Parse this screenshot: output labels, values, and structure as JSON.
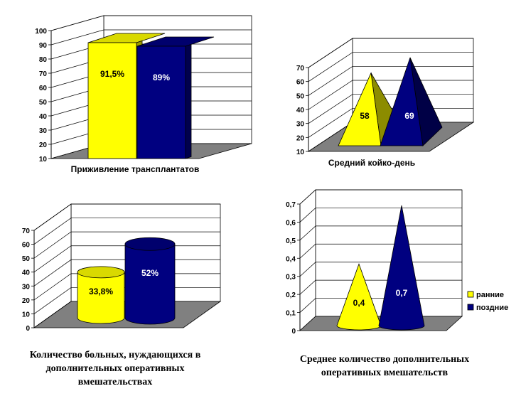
{
  "colors": {
    "yellow": "#ffff00",
    "navy": "#000080",
    "floor": "#808080",
    "wall": "#ffffff"
  },
  "chart_data": [
    {
      "type": "bar",
      "shape": "box",
      "title": "",
      "xlabel": "Приживление трансплантатов",
      "ylim": [
        10,
        100
      ],
      "yticks": [
        "10",
        "20",
        "30",
        "40",
        "50",
        "60",
        "70",
        "80",
        "90",
        "100"
      ],
      "series": [
        {
          "value": 91.5,
          "label": "91,5%",
          "color": "yellow"
        },
        {
          "value": 89,
          "label": "89%",
          "color": "navy"
        }
      ]
    },
    {
      "type": "bar",
      "shape": "pyramid",
      "title": "",
      "xlabel": "Средний койко-день",
      "ylim": [
        10,
        70
      ],
      "yticks": [
        "10",
        "20",
        "30",
        "40",
        "50",
        "60",
        "70"
      ],
      "series": [
        {
          "value": 58,
          "label": "58",
          "color": "yellow"
        },
        {
          "value": 69,
          "label": "69",
          "color": "navy"
        }
      ]
    },
    {
      "type": "bar",
      "shape": "cylinder",
      "title": "Количество больных, нуждающихся в дополнительных оперативных вмешательствах",
      "title_lines": [
        "Количество больных, нуждающихся в",
        "дополнительных оперативных",
        "вмешательствах"
      ],
      "ylim": [
        0,
        70
      ],
      "yticks": [
        "0",
        "10",
        "20",
        "30",
        "40",
        "50",
        "60",
        "70"
      ],
      "series": [
        {
          "value": 33.8,
          "label": "33,8%",
          "color": "yellow"
        },
        {
          "value": 52,
          "label": "52%",
          "color": "navy"
        }
      ]
    },
    {
      "type": "bar",
      "shape": "cone",
      "title": "Среднее количество дополнительных оперативных вмешательств",
      "title_lines": [
        "Среднее количество дополнительных",
        "оперативных вмешательств"
      ],
      "ylim": [
        0,
        0.7
      ],
      "yticks": [
        "0",
        "0,1",
        "0,2",
        "0,3",
        "0,4",
        "0,5",
        "0,6",
        "0,7"
      ],
      "series": [
        {
          "name": "ранние",
          "value": 0.4,
          "label": "0,4",
          "color": "yellow"
        },
        {
          "name": "поздние",
          "value": 0.7,
          "label": "0,7",
          "color": "navy"
        }
      ],
      "legend": {
        "position": "right",
        "items": [
          "ранние",
          "поздние"
        ]
      }
    }
  ]
}
